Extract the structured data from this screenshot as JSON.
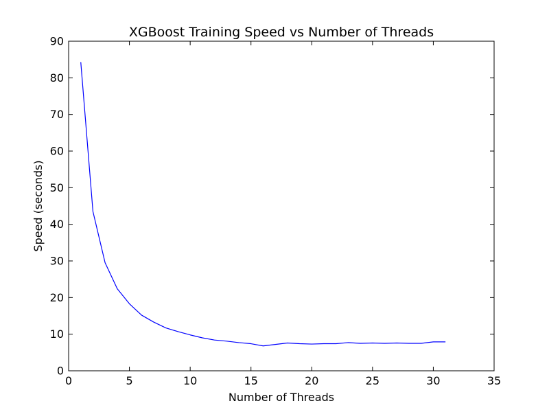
{
  "chart_data": {
    "type": "line",
    "title": "XGBoost Training Speed vs Number of Threads",
    "xlabel": "Number of Threads",
    "ylabel": "Speed (seconds)",
    "xlim": [
      0,
      35
    ],
    "ylim": [
      0,
      90
    ],
    "xticks": [
      0,
      5,
      10,
      15,
      20,
      25,
      30,
      35
    ],
    "yticks": [
      0,
      10,
      20,
      30,
      40,
      50,
      60,
      70,
      80,
      90
    ],
    "grid": false,
    "series": [
      {
        "color": "#0000ff",
        "x": [
          1,
          2,
          3,
          4,
          5,
          6,
          7,
          8,
          9,
          10,
          11,
          12,
          13,
          14,
          15,
          16,
          17,
          18,
          19,
          20,
          21,
          22,
          23,
          24,
          25,
          26,
          27,
          28,
          29,
          30,
          31
        ],
        "y": [
          84.3,
          43.5,
          29.5,
          22.4,
          18.3,
          15.2,
          13.3,
          11.7,
          10.7,
          9.8,
          9.0,
          8.4,
          8.1,
          7.7,
          7.4,
          6.8,
          7.2,
          7.6,
          7.4,
          7.3,
          7.4,
          7.4,
          7.7,
          7.5,
          7.6,
          7.5,
          7.6,
          7.5,
          7.5,
          7.9,
          7.9
        ]
      }
    ]
  }
}
